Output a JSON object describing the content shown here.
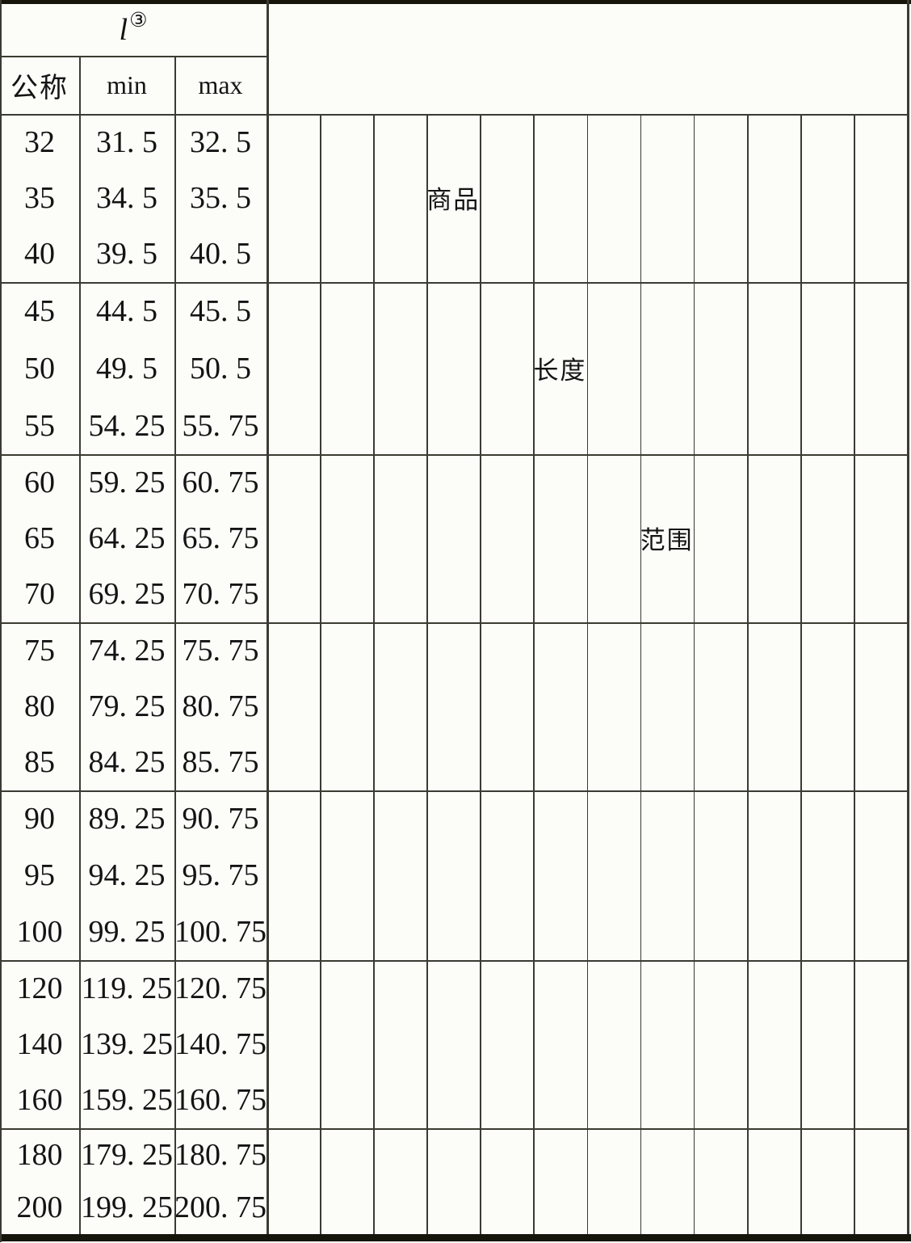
{
  "header": {
    "symbol": "l",
    "footnote_mark": "③",
    "columns": [
      "公称",
      "min",
      "max"
    ]
  },
  "diagonal_labels": [
    {
      "text": "商品",
      "grid_col": 3,
      "group": 0,
      "row": 1
    },
    {
      "text": "长度",
      "grid_col": 5,
      "group": 1,
      "row": 1
    },
    {
      "text": "范围",
      "grid_col": 7,
      "group": 2,
      "row": 1
    }
  ],
  "right_grid": {
    "columns": 12
  },
  "table": {
    "groups": [
      {
        "rows": [
          {
            "nominal": "32",
            "min": "31. 5",
            "max": "32. 5"
          },
          {
            "nominal": "35",
            "min": "34. 5",
            "max": "35. 5"
          },
          {
            "nominal": "40",
            "min": "39. 5",
            "max": "40. 5"
          }
        ]
      },
      {
        "rows": [
          {
            "nominal": "45",
            "min": "44. 5",
            "max": "45. 5"
          },
          {
            "nominal": "50",
            "min": "49. 5",
            "max": "50. 5"
          },
          {
            "nominal": "55",
            "min": "54. 25",
            "max": "55. 75"
          }
        ]
      },
      {
        "rows": [
          {
            "nominal": "60",
            "min": "59. 25",
            "max": "60. 75"
          },
          {
            "nominal": "65",
            "min": "64. 25",
            "max": "65. 75"
          },
          {
            "nominal": "70",
            "min": "69. 25",
            "max": "70. 75"
          }
        ]
      },
      {
        "rows": [
          {
            "nominal": "75",
            "min": "74. 25",
            "max": "75. 75"
          },
          {
            "nominal": "80",
            "min": "79. 25",
            "max": "80. 75"
          },
          {
            "nominal": "85",
            "min": "84. 25",
            "max": "85. 75"
          }
        ]
      },
      {
        "rows": [
          {
            "nominal": "90",
            "min": "89. 25",
            "max": "90. 75"
          },
          {
            "nominal": "95",
            "min": "94. 25",
            "max": "95. 75"
          },
          {
            "nominal": "100",
            "min": "99. 25",
            "max": "100. 75"
          }
        ]
      },
      {
        "rows": [
          {
            "nominal": "120",
            "min": "119. 25",
            "max": "120. 75"
          },
          {
            "nominal": "140",
            "min": "139. 25",
            "max": "140. 75"
          },
          {
            "nominal": "160",
            "min": "159. 25",
            "max": "160. 75"
          }
        ]
      },
      {
        "rows": [
          {
            "nominal": "180",
            "min": "179. 25",
            "max": "180. 75"
          },
          {
            "nominal": "200",
            "min": "199. 25",
            "max": "200. 75"
          }
        ]
      }
    ]
  },
  "colors": {
    "grid_line": "#3b3b33",
    "border": "#15150c",
    "text": "#141414",
    "background": "#fcfcf9"
  }
}
